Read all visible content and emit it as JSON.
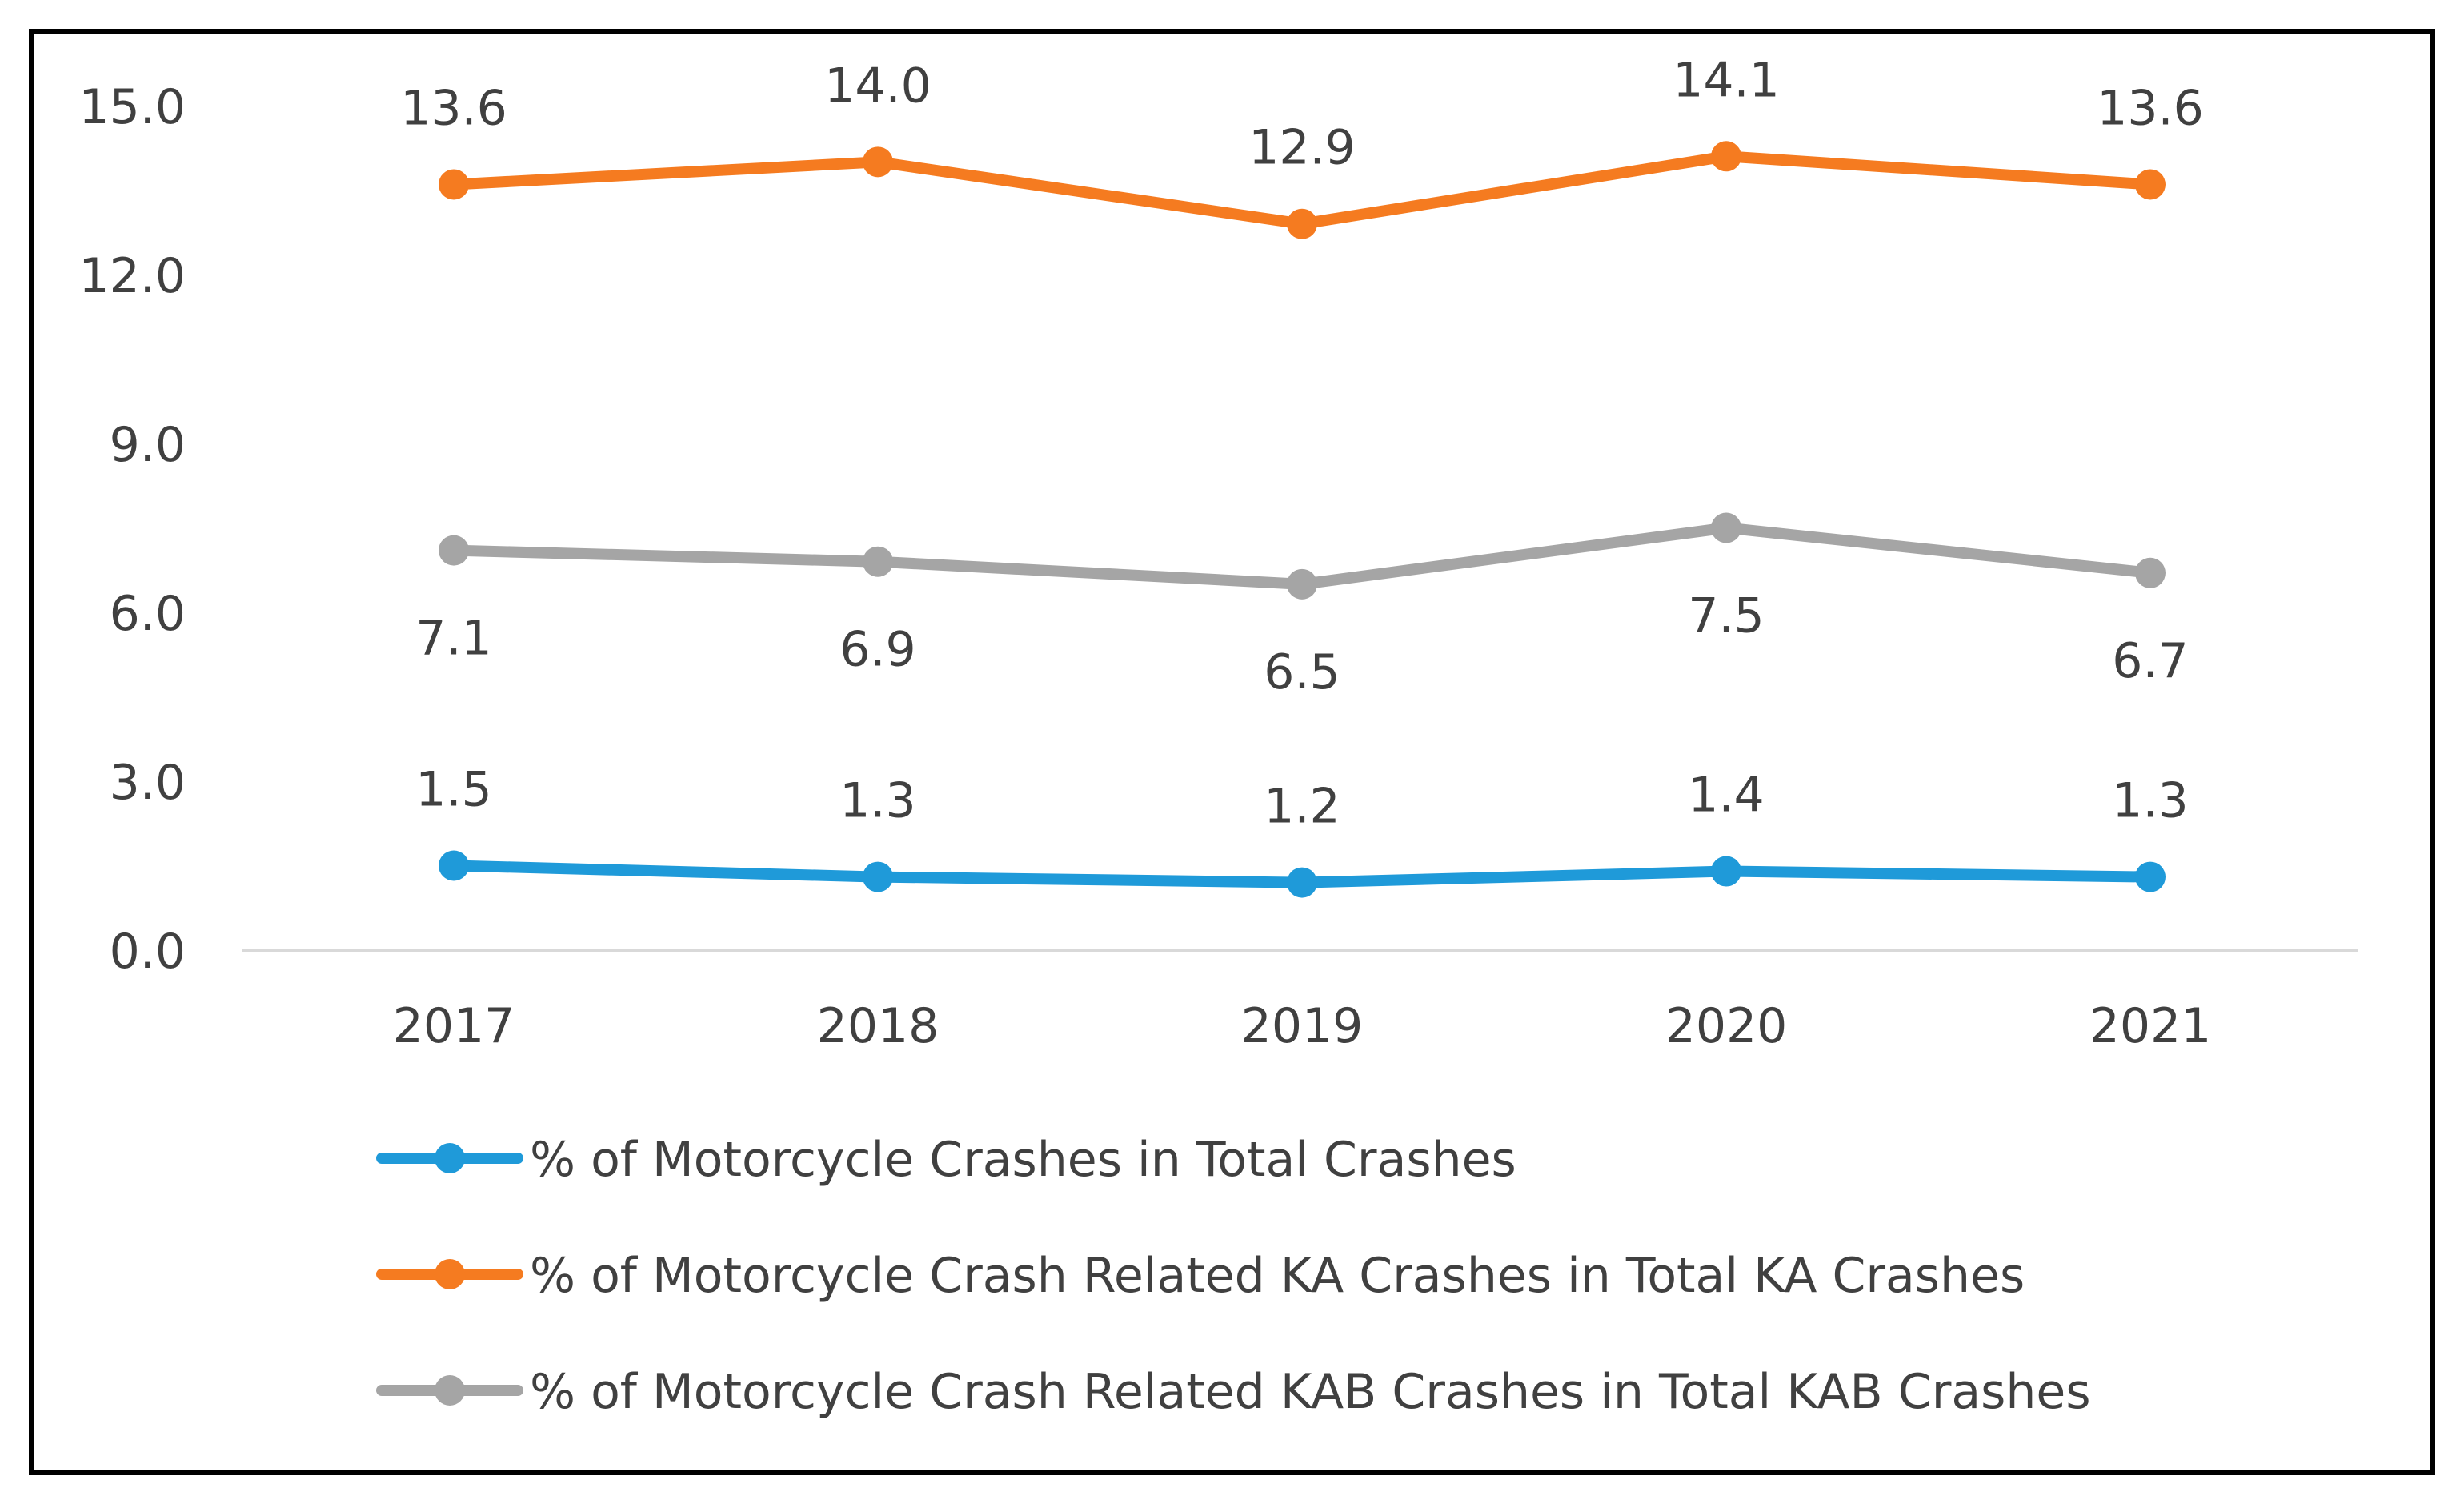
{
  "chart_data": {
    "type": "line",
    "title": "",
    "xlabel": "",
    "ylabel": "",
    "categories": [
      "2017",
      "2018",
      "2019",
      "2020",
      "2021"
    ],
    "ylim": [
      0,
      15
    ],
    "yticks": [
      0,
      3,
      6,
      9,
      12,
      15
    ],
    "ytick_labels": [
      "0.0",
      "3.0",
      "6.0",
      "9.0",
      "12.0",
      "15.0"
    ],
    "grid": false,
    "legend_position": "bottom",
    "series": [
      {
        "name": "% of Motorcycle Crashes in Total Crashes",
        "color": "#1f9ad9",
        "values": [
          1.5,
          1.3,
          1.2,
          1.4,
          1.3
        ],
        "labels": [
          "1.5",
          "1.3",
          "1.2",
          "1.4",
          "1.3"
        ],
        "label_position": "above"
      },
      {
        "name": "% of Motorcycle Crash Related KA Crashes in Total KA Crashes",
        "color": "#f57b20",
        "values": [
          13.6,
          14.0,
          12.9,
          14.1,
          13.6
        ],
        "labels": [
          "13.6",
          "14.0",
          "12.9",
          "14.1",
          "13.6"
        ],
        "label_position": "above"
      },
      {
        "name": "% of Motorcycle Crash Related KAB Crashes in Total KAB Crashes",
        "color": "#a5a5a5",
        "values": [
          7.1,
          6.9,
          6.5,
          7.5,
          6.7
        ],
        "labels": [
          "7.1",
          "6.9",
          "6.5",
          "7.5",
          "6.7"
        ],
        "label_position": "below"
      }
    ]
  }
}
